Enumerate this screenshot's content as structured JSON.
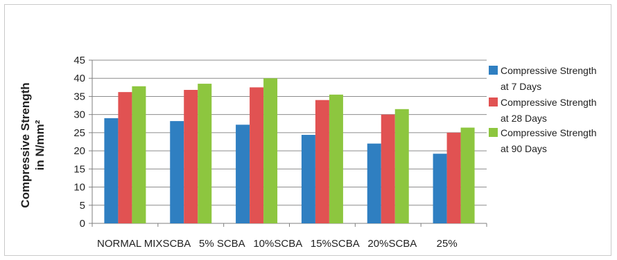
{
  "chart_data": {
    "type": "bar",
    "title": "",
    "ylabel_lines": [
      "Compressive Strength",
      "in N/mm²"
    ],
    "xlabel": "",
    "ylim": [
      0,
      45
    ],
    "yticks": [
      0,
      5,
      10,
      15,
      20,
      25,
      30,
      35,
      40,
      45
    ],
    "grid": true,
    "legend_position": "right",
    "category_labels": [
      "NORMAL MIX",
      "SCBA   5%",
      " SCBA   10%",
      "SCBA   15%",
      "SCBA   20%",
      "SCBA   25%"
    ],
    "x_axis_text": "NORMAL MIXSCBA   5% SCBA   10%SCBA   15%SCBA   20%SCBA       25%",
    "series": [
      {
        "name": "Compressive Strength at 7 Days",
        "legend_lines": [
          "Compressive Strength",
          "at 7 Days"
        ],
        "color": "#2f7fc1",
        "values": [
          29.0,
          28.2,
          27.2,
          24.4,
          22.0,
          19.2
        ]
      },
      {
        "name": "Compressive Strength at 28 Days",
        "legend_lines": [
          "Compressive Strength",
          "at 28 Days"
        ],
        "color": "#e15252",
        "values": [
          36.2,
          36.8,
          37.5,
          34.0,
          30.0,
          25.0
        ]
      },
      {
        "name": "Compressive Strength at 90 Days",
        "legend_lines": [
          "Compressive Strength",
          "at 90 Days"
        ],
        "color": "#8dc63f",
        "values": [
          37.8,
          38.5,
          40.0,
          35.5,
          31.5,
          26.4
        ]
      }
    ]
  }
}
